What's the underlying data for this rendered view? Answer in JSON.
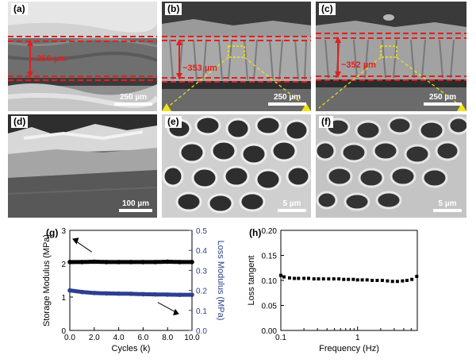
{
  "panels": {
    "a": {
      "label": "(a)",
      "scale": "250 µm",
      "thickness": "~350 µm"
    },
    "b": {
      "label": "(b)",
      "scale": "250 µm",
      "thickness": "~353 µm"
    },
    "c": {
      "label": "(c)",
      "scale": "250 µm",
      "thickness": "~352 µm"
    },
    "d": {
      "label": "(d)",
      "scale": "100 µm"
    },
    "e": {
      "label": "(e)",
      "scale": "5 µm"
    },
    "f": {
      "label": "(f)",
      "scale": "5 µm"
    }
  },
  "colors": {
    "dash_red": "#e0201f",
    "callout_yellow": "#f3e21a",
    "storage": "#000000",
    "loss": "#2c3e8f"
  },
  "chart_data": [
    {
      "panel_label": "(g)",
      "type": "scatter",
      "xlabel": "Cycles (k)",
      "ylabel": "Storage Modulus (MPa)",
      "y2label": "Loss Modulus (MPa)",
      "xlim": [
        0,
        10
      ],
      "ylim": [
        0,
        3
      ],
      "y2lim": [
        0,
        0.5
      ],
      "xticks": [
        "0.0",
        "2.0",
        "4.0",
        "6.0",
        "8.0",
        "10.0"
      ],
      "yticks": [
        "0",
        "1",
        "2",
        "3"
      ],
      "y2ticks": [
        "0.0",
        "0.1",
        "0.2",
        "0.3",
        "0.4",
        "0.5"
      ],
      "series": [
        {
          "axis": "left",
          "x": [
            0,
            1,
            2,
            3,
            4,
            5,
            6,
            7,
            8,
            9,
            10
          ],
          "values": [
            2.05,
            2.05,
            2.06,
            2.05,
            2.05,
            2.05,
            2.05,
            2.05,
            2.06,
            2.05,
            2.05
          ]
        },
        {
          "axis": "right",
          "x": [
            0,
            1,
            2,
            3,
            4,
            5,
            6,
            7,
            8,
            9,
            10
          ],
          "values": [
            0.2,
            0.192,
            0.187,
            0.185,
            0.184,
            0.183,
            0.181,
            0.18,
            0.179,
            0.178,
            0.178
          ]
        }
      ]
    },
    {
      "panel_label": "(h)",
      "type": "scatter",
      "xlabel": "Frequency (Hz)",
      "ylabel": "Loss tangent",
      "xscale": "log",
      "xlim": [
        0.1,
        6
      ],
      "ylim": [
        0,
        0.2
      ],
      "xticks": [
        "0.1",
        "1"
      ],
      "yticks": [
        "0.00",
        "0.05",
        "0.10",
        "0.15",
        "0.20"
      ],
      "series": [
        {
          "x": [
            0.1,
            0.11,
            0.13,
            0.15,
            0.17,
            0.2,
            0.23,
            0.27,
            0.31,
            0.36,
            0.42,
            0.49,
            0.57,
            0.66,
            0.76,
            0.88,
            1.0,
            1.15,
            1.33,
            1.55,
            1.8,
            2.1,
            2.45,
            2.85,
            3.3,
            3.85,
            4.4,
            5.1,
            5.9
          ],
          "values": [
            0.11,
            0.107,
            0.105,
            0.104,
            0.104,
            0.104,
            0.104,
            0.103,
            0.103,
            0.103,
            0.103,
            0.103,
            0.103,
            0.102,
            0.102,
            0.102,
            0.101,
            0.101,
            0.101,
            0.1,
            0.1,
            0.1,
            0.099,
            0.098,
            0.098,
            0.099,
            0.1,
            0.102,
            0.108
          ]
        }
      ]
    }
  ]
}
